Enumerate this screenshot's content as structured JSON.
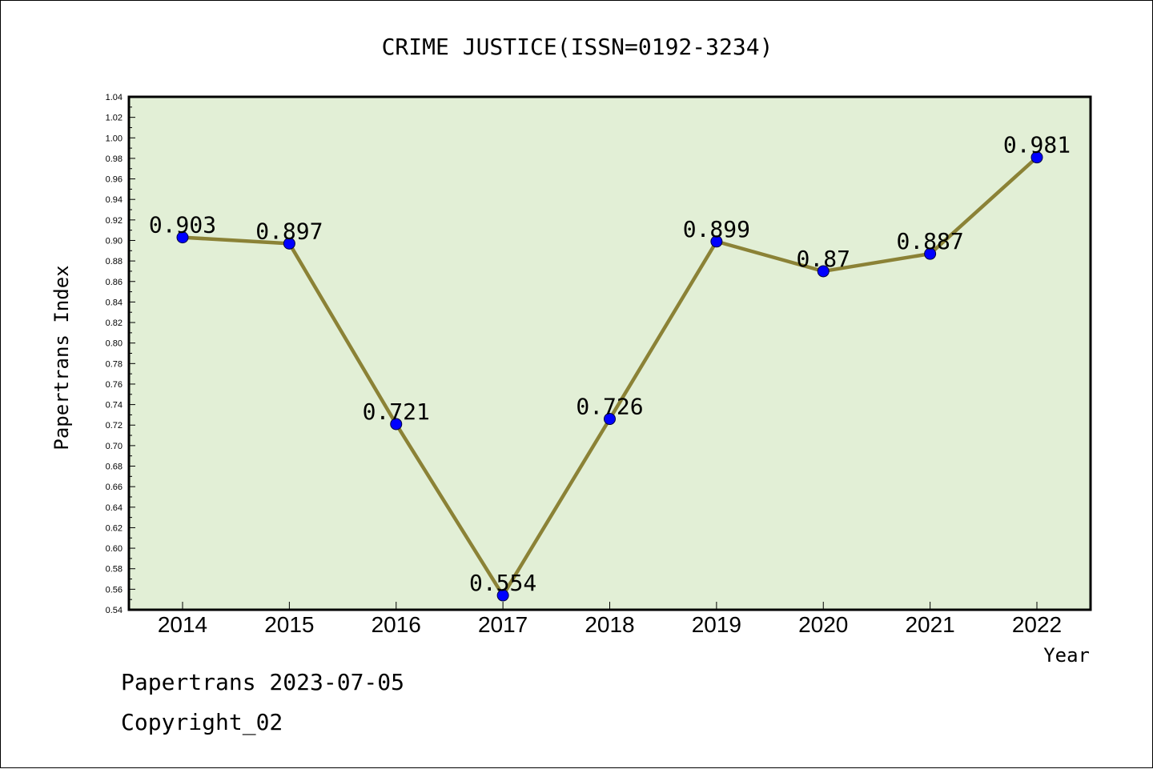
{
  "chart_data": {
    "type": "line",
    "title": "CRIME JUSTICE(ISSN=0192-3234)",
    "xlabel": "Year",
    "ylabel": "Papertrans Index",
    "categories": [
      "2014",
      "2015",
      "2016",
      "2017",
      "2018",
      "2019",
      "2020",
      "2021",
      "2022"
    ],
    "series": [
      {
        "values": [
          0.903,
          0.897,
          0.721,
          0.554,
          0.726,
          0.899,
          0.87,
          0.887,
          0.981
        ],
        "labels": [
          "0.903",
          "0.897",
          "0.721",
          "0.554",
          "0.726",
          "0.899",
          "0.87",
          "0.887",
          "0.981"
        ],
        "line_color": "#8b8236",
        "marker_color": "#0000ff"
      }
    ],
    "ylim": [
      0.54,
      1.04
    ],
    "yticks": [
      "0.54",
      "0.56",
      "0.58",
      "0.60",
      "0.62",
      "0.64",
      "0.66",
      "0.68",
      "0.70",
      "0.72",
      "0.74",
      "0.76",
      "0.78",
      "0.80",
      "0.82",
      "0.84",
      "0.86",
      "0.88",
      "0.90",
      "0.92",
      "0.94",
      "0.96",
      "0.98",
      "1.00",
      "1.02",
      "1.04"
    ],
    "plot_background": "#e2efd6",
    "grid": false,
    "legend": "none"
  },
  "footer": {
    "line1": "Papertrans 2023-07-05",
    "line2": "Copyright_02"
  }
}
